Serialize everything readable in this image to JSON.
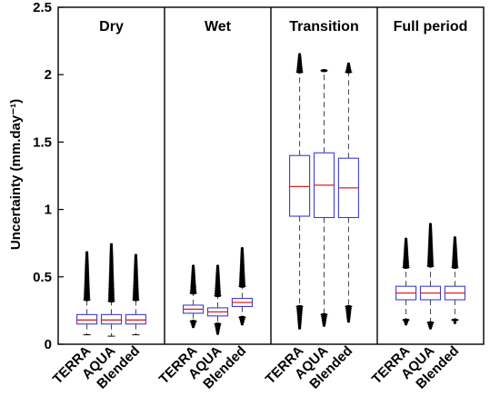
{
  "chart_data": {
    "type": "boxplot",
    "ylabel": "Uncertainty (mm.day⁻¹)",
    "ylim": [
      0,
      2.5
    ],
    "yticks": [
      "0",
      "0.5",
      "1",
      "1.5",
      "2",
      "2.5"
    ],
    "ytick_values": [
      0,
      0.5,
      1,
      1.5,
      2,
      2.5
    ],
    "categories": [
      "TERRA",
      "AQUA",
      "Blended"
    ],
    "colors": {
      "box": "#3b3bd8",
      "median": "#e02020",
      "whisker": "#444444",
      "outlier": "#000000"
    },
    "panels": [
      {
        "title": "Dry",
        "boxes": [
          {
            "name": "TERRA",
            "min": 0.07,
            "q1": 0.15,
            "median": 0.18,
            "q3": 0.22,
            "max": 0.33,
            "outlier_range": [
              0.33,
              0.68
            ]
          },
          {
            "name": "AQUA",
            "min": 0.06,
            "q1": 0.15,
            "median": 0.18,
            "q3": 0.22,
            "max": 0.32,
            "outlier_range": [
              0.32,
              0.74
            ]
          },
          {
            "name": "Blended",
            "min": 0.07,
            "q1": 0.15,
            "median": 0.18,
            "q3": 0.22,
            "max": 0.33,
            "outlier_range": [
              0.33,
              0.66
            ]
          }
        ]
      },
      {
        "title": "Wet",
        "boxes": [
          {
            "name": "TERRA",
            "min": 0.17,
            "q1": 0.23,
            "median": 0.26,
            "q3": 0.29,
            "max": 0.38,
            "outlier_range": [
              0.38,
              0.58
            ],
            "low_outliers": [
              0.13,
              0.17
            ]
          },
          {
            "name": "AQUA",
            "min": 0.15,
            "q1": 0.21,
            "median": 0.24,
            "q3": 0.27,
            "max": 0.36,
            "outlier_range": [
              0.36,
              0.58
            ],
            "low_outliers": [
              0.08,
              0.15
            ]
          },
          {
            "name": "Blended",
            "min": 0.2,
            "q1": 0.28,
            "median": 0.31,
            "q3": 0.34,
            "max": 0.43,
            "outlier_range": [
              0.43,
              0.71
            ],
            "low_outliers": [
              0.15,
              0.2
            ]
          }
        ]
      },
      {
        "title": "Transition",
        "boxes": [
          {
            "name": "TERRA",
            "min": 0.28,
            "q1": 0.95,
            "median": 1.17,
            "q3": 1.4,
            "max": 2.02,
            "outlier_range": [
              2.02,
              2.15
            ],
            "low_outliers": [
              0.12,
              0.28
            ]
          },
          {
            "name": "AQUA",
            "min": 0.22,
            "q1": 0.94,
            "median": 1.18,
            "q3": 1.42,
            "max": 2.03,
            "outlier_range": [
              2.03,
              2.03
            ],
            "low_outliers": [
              0.14,
              0.22
            ]
          },
          {
            "name": "Blended",
            "min": 0.28,
            "q1": 0.94,
            "median": 1.16,
            "q3": 1.38,
            "max": 2.02,
            "outlier_range": [
              2.02,
              2.08
            ],
            "low_outliers": [
              0.17,
              0.28
            ]
          }
        ]
      },
      {
        "title": "Full period",
        "boxes": [
          {
            "name": "TERRA",
            "min": 0.18,
            "q1": 0.33,
            "median": 0.38,
            "q3": 0.43,
            "max": 0.57,
            "outlier_range": [
              0.57,
              0.78
            ],
            "low_outliers": [
              0.15,
              0.18
            ]
          },
          {
            "name": "AQUA",
            "min": 0.16,
            "q1": 0.33,
            "median": 0.38,
            "q3": 0.43,
            "max": 0.58,
            "outlier_range": [
              0.58,
              0.89
            ],
            "low_outliers": [
              0.12,
              0.16
            ]
          },
          {
            "name": "Blended",
            "min": 0.18,
            "q1": 0.33,
            "median": 0.38,
            "q3": 0.43,
            "max": 0.57,
            "outlier_range": [
              0.57,
              0.79
            ],
            "low_outliers": [
              0.16,
              0.18
            ]
          }
        ]
      }
    ]
  }
}
